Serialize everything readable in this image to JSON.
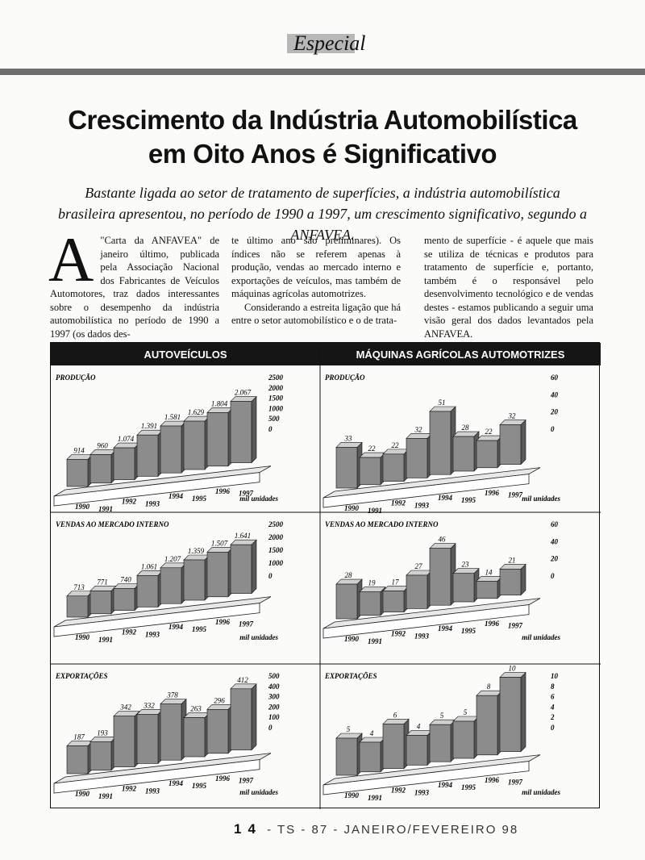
{
  "section": "Especial",
  "title_line1": "Crescimento da Indústria Automobilística",
  "title_line2": "em Oito Anos é Significativo",
  "subtitle": "Bastante ligada ao setor de tratamento de superfícies, a indústria automobilística brasileira apresentou, no período de 1990 a 1997, um crescimento significativo, segundo a ANFAVEA.",
  "body": {
    "dropcap": "A",
    "col1": "\"Carta da ANFAVEA\" de janeiro último, publicada pela Associação Nacional dos Fabricantes de Veículos Automotores, traz dados interessantes sobre o desempenho da indústria automobilística no período de 1990 a 1997 (os dados des-",
    "col2a": "te último ano são preliminares). Os índices não se referem apenas à produção, vendas ao mercado interno e exportações de veículos, mas também de máquinas agrícolas automotrizes.",
    "col2b": "Considerando a estreita ligação que há entre o setor automobilístico e o de trata-",
    "col3": "mento de superfície - é aquele que mais se utiliza de técnicas e produtos para tratamento de superfície e, portanto, também é o responsável pelo desenvolvimento tecnológico e de vendas destes - estamos publicando a seguir uma visão geral dos dados levantados pela ANFAVEA."
  },
  "footer": {
    "page": "14",
    "text": "- TS - 87 - JANEIRO/FEVEREIRO 98"
  },
  "headers": [
    "AUTOVEÍCULOS",
    "MÁQUINAS AGRÍCOLAS AUTOMOTRIZES"
  ],
  "chart_data": [
    {
      "type": "bar",
      "title": "PRODUÇÃO",
      "group": "AUTOVEÍCULOS",
      "categories": [
        "1990",
        "1991",
        "1992",
        "1993",
        "1994",
        "1995",
        "1996",
        "1997"
      ],
      "values": [
        914,
        960,
        1074,
        1391,
        1581,
        1629,
        1804,
        2067
      ],
      "labels": [
        "914",
        "960",
        "1.074",
        "1.391",
        "1.581",
        "1.629",
        "1.804",
        "2.067"
      ],
      "yticks": [
        0,
        500,
        1000,
        1500,
        2000,
        2500
      ],
      "ylim": [
        0,
        2500
      ],
      "unit": "mil unidades"
    },
    {
      "type": "bar",
      "title": "PRODUÇÃO",
      "group": "MÁQUINAS AGRÍCOLAS AUTOMOTRIZES",
      "categories": [
        "1990",
        "1991",
        "1992",
        "1993",
        "1994",
        "1995",
        "1996",
        "1997"
      ],
      "values": [
        33,
        22,
        22,
        32,
        51,
        28,
        22,
        32
      ],
      "labels": [
        "33",
        "22",
        "22",
        "32",
        "51",
        "28",
        "22",
        "32"
      ],
      "yticks": [
        0,
        20,
        40,
        60
      ],
      "ylim": [
        0,
        60
      ],
      "unit": "mil unidades"
    },
    {
      "type": "bar",
      "title": "VENDAS AO MERCADO INTERNO",
      "group": "AUTOVEÍCULOS",
      "categories": [
        "1990",
        "1991",
        "1992",
        "1993",
        "1994",
        "1995",
        "1996",
        "1997"
      ],
      "values": [
        713,
        771,
        740,
        1061,
        1207,
        1359,
        1507,
        1641
      ],
      "labels": [
        "713",
        "771",
        "740",
        "1.061",
        "1.207",
        "1.359",
        "1.507",
        "1.641"
      ],
      "yticks": [
        0,
        1000,
        1500,
        2000,
        2500
      ],
      "ylim": [
        0,
        2500
      ],
      "unit": "mil unidades"
    },
    {
      "type": "bar",
      "title": "VENDAS AO MERCADO INTERNO",
      "group": "MÁQUINAS AGRÍCOLAS AUTOMOTRIZES",
      "categories": [
        "1990",
        "1991",
        "1992",
        "1993",
        "1994",
        "1995",
        "1996",
        "1997"
      ],
      "values": [
        28,
        19,
        17,
        27,
        46,
        23,
        14,
        21
      ],
      "labels": [
        "28",
        "19",
        "17",
        "27",
        "46",
        "23",
        "14",
        "21"
      ],
      "yticks": [
        0,
        20,
        40,
        60
      ],
      "ylim": [
        0,
        60
      ],
      "unit": "mil unidades"
    },
    {
      "type": "bar",
      "title": "EXPORTAÇÕES",
      "group": "AUTOVEÍCULOS",
      "categories": [
        "1990",
        "1991",
        "1992",
        "1993",
        "1994",
        "1995",
        "1996",
        "1997"
      ],
      "values": [
        187,
        193,
        342,
        332,
        378,
        263,
        296,
        412
      ],
      "labels": [
        "187",
        "193",
        "342",
        "332",
        "378",
        "263",
        "296",
        "412"
      ],
      "yticks": [
        0,
        100,
        200,
        300,
        400,
        500
      ],
      "ylim": [
        0,
        500
      ],
      "unit": "mil unidades"
    },
    {
      "type": "bar",
      "title": "EXPORTAÇÕES",
      "group": "MÁQUINAS AGRÍCOLAS AUTOMOTRIZES",
      "categories": [
        "1990",
        "1991",
        "1992",
        "1993",
        "1994",
        "1995",
        "1996",
        "1997"
      ],
      "values": [
        5,
        4,
        6,
        4,
        5,
        5,
        8,
        10
      ],
      "labels": [
        "5",
        "4",
        "6",
        "4",
        "5",
        "5",
        "8",
        "10"
      ],
      "yticks": [
        0,
        2,
        4,
        6,
        8,
        10
      ],
      "ylim": [
        0,
        10
      ],
      "unit": "mil unidades"
    }
  ]
}
